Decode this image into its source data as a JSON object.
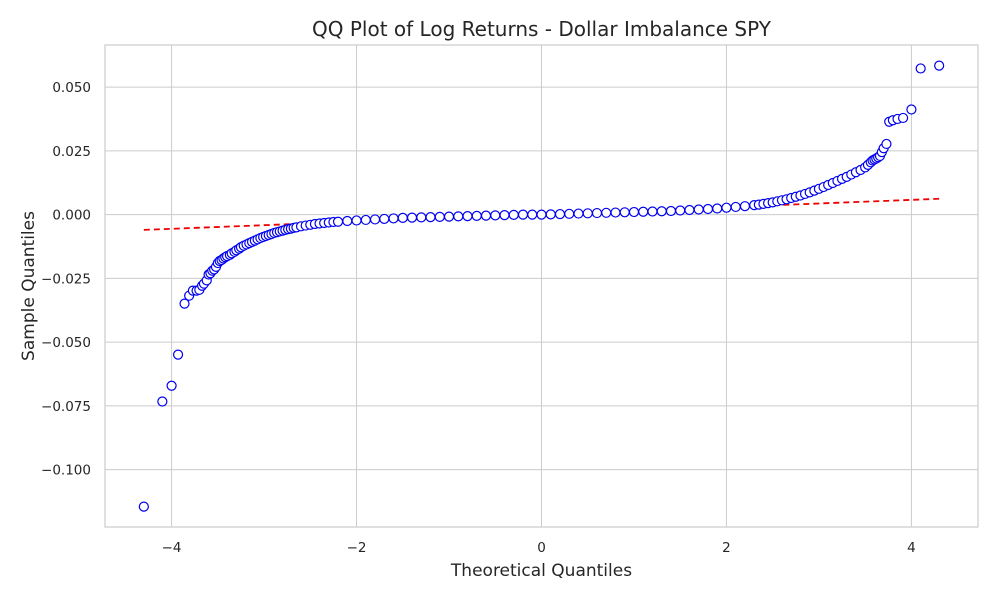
{
  "chart_data": {
    "type": "scatter",
    "title": "QQ Plot of Log Returns - Dollar Imbalance SPY",
    "xlabel": "Theoretical Quantiles",
    "ylabel": "Sample Quantiles",
    "xlim": [
      -4.72,
      4.72
    ],
    "ylim": [
      -0.1225,
      0.0665
    ],
    "xticks": [
      -4,
      -2,
      0,
      2,
      4
    ],
    "xtick_labels": [
      "−4",
      "−2",
      "0",
      "2",
      "4"
    ],
    "yticks": [
      0.05,
      0.025,
      0.0,
      -0.025,
      -0.05,
      -0.075,
      -0.1
    ],
    "ytick_labels": [
      "0.050",
      "0.025",
      "0.000",
      "−0.025",
      "−0.050",
      "−0.075",
      "−0.100"
    ],
    "grid": true,
    "legend": "none",
    "series": [
      {
        "kind": "points",
        "marker_edge_color": "#0000ee",
        "marker_face_color": "#ffffff",
        "x": [
          -4.3,
          -4.1,
          -4.0,
          -3.93,
          -3.86,
          -3.81,
          -3.77,
          -3.73,
          -3.7,
          -3.67,
          -3.65,
          -3.62,
          -3.6,
          -3.58,
          -3.56,
          -3.54,
          -3.52,
          -3.5,
          -3.48,
          -3.46,
          -3.44,
          -3.42,
          -3.4,
          -3.37,
          -3.35,
          -3.32,
          -3.3,
          -3.27,
          -3.25,
          -3.22,
          -3.19,
          -3.16,
          -3.13,
          -3.1,
          -3.07,
          -3.04,
          -3.01,
          -2.98,
          -2.95,
          -2.92,
          -2.89,
          -2.86,
          -2.83,
          -2.8,
          -2.77,
          -2.74,
          -2.71,
          -2.68,
          -2.65,
          -2.6,
          -2.55,
          -2.5,
          -2.45,
          -2.4,
          -2.35,
          -2.3,
          -2.25,
          -2.2,
          -2.1,
          -2.0,
          -1.9,
          -1.8,
          -1.7,
          -1.6,
          -1.5,
          -1.4,
          -1.3,
          -1.2,
          -1.1,
          -1.0,
          -0.9,
          -0.8,
          -0.7,
          -0.6,
          -0.5,
          -0.4,
          -0.3,
          -0.2,
          -0.1,
          0.0,
          0.1,
          0.2,
          0.3,
          0.4,
          0.5,
          0.6,
          0.7,
          0.8,
          0.9,
          1.0,
          1.1,
          1.2,
          1.3,
          1.4,
          1.5,
          1.6,
          1.7,
          1.8,
          1.9,
          2.0,
          2.1,
          2.2,
          2.3,
          2.35,
          2.4,
          2.45,
          2.5,
          2.55,
          2.6,
          2.65,
          2.7,
          2.75,
          2.8,
          2.85,
          2.9,
          2.95,
          3.0,
          3.05,
          3.1,
          3.15,
          3.2,
          3.25,
          3.3,
          3.35,
          3.4,
          3.45,
          3.5,
          3.53,
          3.56,
          3.58,
          3.6,
          3.62,
          3.64,
          3.66,
          3.68,
          3.7,
          3.73,
          3.76,
          3.8,
          3.85,
          3.91,
          4.0,
          4.1,
          4.3
        ],
        "y": [
          -0.1145,
          -0.0733,
          -0.0671,
          -0.0549,
          -0.0349,
          -0.0318,
          -0.0298,
          -0.0298,
          -0.0295,
          -0.0279,
          -0.0271,
          -0.0258,
          -0.0235,
          -0.023,
          -0.022,
          -0.0215,
          -0.0205,
          -0.019,
          -0.0182,
          -0.0178,
          -0.0172,
          -0.0167,
          -0.0163,
          -0.0158,
          -0.0152,
          -0.0146,
          -0.014,
          -0.0134,
          -0.0128,
          -0.0122,
          -0.0117,
          -0.0112,
          -0.0107,
          -0.0102,
          -0.0097,
          -0.0092,
          -0.0088,
          -0.0084,
          -0.008,
          -0.0076,
          -0.0072,
          -0.0069,
          -0.0066,
          -0.0063,
          -0.006,
          -0.0057,
          -0.0055,
          -0.0052,
          -0.005,
          -0.0046,
          -0.0043,
          -0.004,
          -0.0037,
          -0.0035,
          -0.0033,
          -0.0031,
          -0.0029,
          -0.0028,
          -0.0025,
          -0.0023,
          -0.0021,
          -0.0019,
          -0.0017,
          -0.0015,
          -0.0013,
          -0.0012,
          -0.0011,
          -0.001,
          -0.0009,
          -0.0008,
          -0.0007,
          -0.0006,
          -0.0005,
          -0.0004,
          -0.0003,
          -0.0002,
          -0.0001,
          0.0,
          0.0,
          0.0,
          0.0001,
          0.0002,
          0.0003,
          0.0004,
          0.0005,
          0.0006,
          0.0007,
          0.0008,
          0.0009,
          0.001,
          0.0011,
          0.0012,
          0.0013,
          0.0014,
          0.0016,
          0.0018,
          0.002,
          0.0022,
          0.0024,
          0.0027,
          0.003,
          0.0033,
          0.0037,
          0.0039,
          0.0042,
          0.0045,
          0.0048,
          0.0052,
          0.0056,
          0.006,
          0.0065,
          0.007,
          0.0075,
          0.0081,
          0.0087,
          0.0094,
          0.0101,
          0.0108,
          0.0116,
          0.0124,
          0.0132,
          0.014,
          0.0148,
          0.0157,
          0.0166,
          0.0175,
          0.0185,
          0.0195,
          0.0205,
          0.0212,
          0.0216,
          0.022,
          0.0225,
          0.023,
          0.0245,
          0.026,
          0.0277,
          0.0364,
          0.037,
          0.0375,
          0.0379,
          0.0412,
          0.0573,
          0.0584
        ]
      },
      {
        "kind": "fit-line",
        "color": "#ee0000",
        "style": "dashed",
        "x": [
          -4.3,
          4.3
        ],
        "y": [
          -0.006,
          0.0062
        ]
      }
    ]
  }
}
